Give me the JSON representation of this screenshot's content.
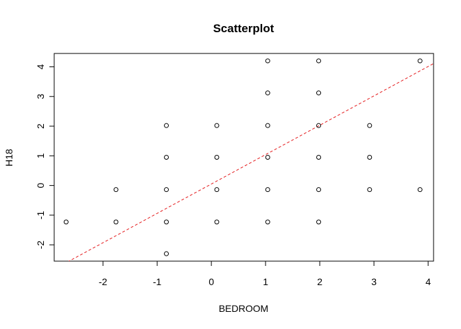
{
  "chart_data": {
    "type": "scatter",
    "title": "Scatterplot",
    "xlabel": "BEDROOM",
    "ylabel": "H18",
    "xlim": [
      -2.9,
      4.1
    ],
    "ylim": [
      -2.55,
      4.45
    ],
    "x_ticks": [
      -2,
      -1,
      0,
      1,
      2,
      3,
      4
    ],
    "y_ticks": [
      -2,
      -1,
      0,
      1,
      2,
      3,
      4
    ],
    "grid": false,
    "marker": "open-circle",
    "series": [
      {
        "points": [
          {
            "x": -2.68,
            "y": -1.23
          },
          {
            "x": -1.76,
            "y": -0.14
          },
          {
            "x": -1.76,
            "y": -1.23
          },
          {
            "x": -0.83,
            "y": 2.02
          },
          {
            "x": -0.83,
            "y": 0.95
          },
          {
            "x": -0.83,
            "y": -0.14
          },
          {
            "x": -0.83,
            "y": -1.23
          },
          {
            "x": -0.83,
            "y": -2.3
          },
          {
            "x": 0.1,
            "y": 2.02
          },
          {
            "x": 0.1,
            "y": 0.95
          },
          {
            "x": 0.1,
            "y": -0.14
          },
          {
            "x": 0.1,
            "y": -1.23
          },
          {
            "x": 1.04,
            "y": 4.2
          },
          {
            "x": 1.04,
            "y": 3.12
          },
          {
            "x": 1.04,
            "y": 2.02
          },
          {
            "x": 1.04,
            "y": 0.95
          },
          {
            "x": 1.04,
            "y": -0.14
          },
          {
            "x": 1.04,
            "y": -1.23
          },
          {
            "x": 1.98,
            "y": 4.2
          },
          {
            "x": 1.98,
            "y": 3.12
          },
          {
            "x": 1.98,
            "y": 2.02
          },
          {
            "x": 1.98,
            "y": 0.95
          },
          {
            "x": 1.98,
            "y": -0.14
          },
          {
            "x": 1.98,
            "y": -1.23
          },
          {
            "x": 2.92,
            "y": 2.02
          },
          {
            "x": 2.92,
            "y": 0.95
          },
          {
            "x": 2.92,
            "y": -0.14
          },
          {
            "x": 3.85,
            "y": 4.2
          },
          {
            "x": 3.85,
            "y": -0.14
          }
        ]
      }
    ],
    "regression_line": {
      "style": "dashed",
      "color": "#e41a1c",
      "intercept": 0.05,
      "slope": 0.99
    }
  }
}
